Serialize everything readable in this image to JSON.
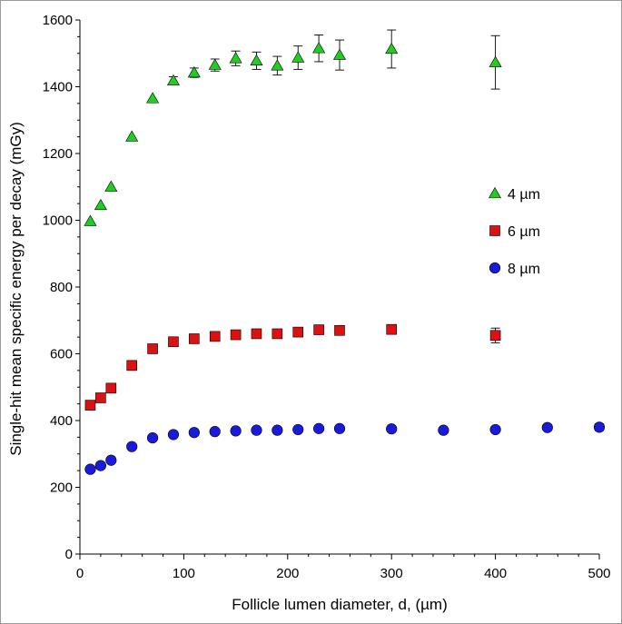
{
  "chart_data": {
    "type": "scatter",
    "title": "",
    "xlabel": "Follicle lumen diameter, d, (µm)",
    "ylabel": "Single-hit mean specific energy per decay (mGy)",
    "xlim": [
      0,
      500
    ],
    "ylim": [
      0,
      1600
    ],
    "x_ticks": [
      0,
      100,
      200,
      300,
      400,
      500
    ],
    "y_ticks": [
      0,
      200,
      400,
      600,
      800,
      1000,
      1200,
      1400,
      1600
    ],
    "grid": false,
    "legend_position": "right",
    "series": [
      {
        "name": "4 µm",
        "marker": "triangle",
        "color": "#22cc22",
        "points": [
          {
            "x": 10,
            "y": 997
          },
          {
            "x": 20,
            "y": 1045
          },
          {
            "x": 30,
            "y": 1100
          },
          {
            "x": 50,
            "y": 1250
          },
          {
            "x": 70,
            "y": 1365
          },
          {
            "x": 90,
            "y": 1418,
            "err": 12
          },
          {
            "x": 110,
            "y": 1442,
            "err": 14
          },
          {
            "x": 130,
            "y": 1465,
            "err": 18
          },
          {
            "x": 150,
            "y": 1485,
            "err": 22
          },
          {
            "x": 170,
            "y": 1478,
            "err": 26
          },
          {
            "x": 190,
            "y": 1463,
            "err": 28
          },
          {
            "x": 210,
            "y": 1487,
            "err": 35
          },
          {
            "x": 230,
            "y": 1515,
            "err": 40
          },
          {
            "x": 250,
            "y": 1495,
            "err": 45
          },
          {
            "x": 300,
            "y": 1513,
            "err": 57
          },
          {
            "x": 400,
            "y": 1473,
            "err": 80
          }
        ]
      },
      {
        "name": "6 µm",
        "marker": "square",
        "color": "#dd1111",
        "points": [
          {
            "x": 10,
            "y": 446
          },
          {
            "x": 20,
            "y": 468
          },
          {
            "x": 30,
            "y": 497
          },
          {
            "x": 50,
            "y": 565
          },
          {
            "x": 70,
            "y": 615
          },
          {
            "x": 90,
            "y": 636
          },
          {
            "x": 110,
            "y": 645
          },
          {
            "x": 130,
            "y": 652
          },
          {
            "x": 150,
            "y": 657
          },
          {
            "x": 170,
            "y": 660
          },
          {
            "x": 190,
            "y": 660
          },
          {
            "x": 210,
            "y": 665
          },
          {
            "x": 230,
            "y": 672
          },
          {
            "x": 250,
            "y": 670
          },
          {
            "x": 300,
            "y": 673,
            "err": 12
          },
          {
            "x": 400,
            "y": 655,
            "err": 22
          }
        ]
      },
      {
        "name": "8 µm",
        "marker": "circle",
        "color": "#1a1adb",
        "points": [
          {
            "x": 10,
            "y": 254
          },
          {
            "x": 20,
            "y": 265
          },
          {
            "x": 30,
            "y": 281
          },
          {
            "x": 50,
            "y": 322
          },
          {
            "x": 70,
            "y": 348
          },
          {
            "x": 90,
            "y": 358
          },
          {
            "x": 110,
            "y": 364
          },
          {
            "x": 130,
            "y": 367
          },
          {
            "x": 150,
            "y": 369
          },
          {
            "x": 170,
            "y": 371
          },
          {
            "x": 190,
            "y": 371
          },
          {
            "x": 210,
            "y": 373
          },
          {
            "x": 230,
            "y": 376
          },
          {
            "x": 250,
            "y": 376
          },
          {
            "x": 300,
            "y": 375
          },
          {
            "x": 350,
            "y": 371
          },
          {
            "x": 400,
            "y": 373
          },
          {
            "x": 450,
            "y": 379
          },
          {
            "x": 500,
            "y": 380,
            "err": 10
          }
        ]
      }
    ]
  }
}
